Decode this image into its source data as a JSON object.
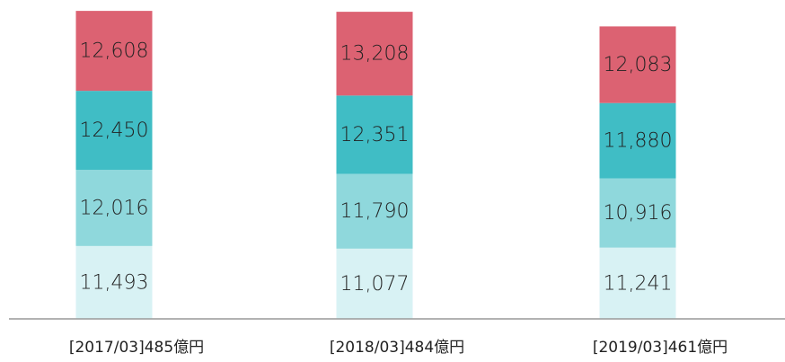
{
  "chart_data": {
    "type": "stacked_bar",
    "categories": [
      "[2017/03]485億円",
      "[2018/03]484億円",
      "[2019/03]461億円"
    ],
    "series": [
      {
        "color": "#d8f2f4",
        "values": [
          11493,
          11077,
          11241
        ],
        "value_labels": [
          "11,493",
          "11,077",
          "11,241"
        ]
      },
      {
        "color": "#8fd8dc",
        "values": [
          12016,
          11790,
          10916
        ],
        "value_labels": [
          "12,016",
          "11,790",
          "10,916"
        ]
      },
      {
        "color": "#40bdc5",
        "values": [
          12450,
          12351,
          11880
        ],
        "value_labels": [
          "12,450",
          "12,351",
          "11,880"
        ]
      },
      {
        "color": "#dc6272",
        "values": [
          12608,
          13208,
          12083
        ],
        "value_labels": [
          "12,608",
          "13,208",
          "12,083"
        ]
      }
    ],
    "ylim": [
      0,
      50000
    ]
  }
}
